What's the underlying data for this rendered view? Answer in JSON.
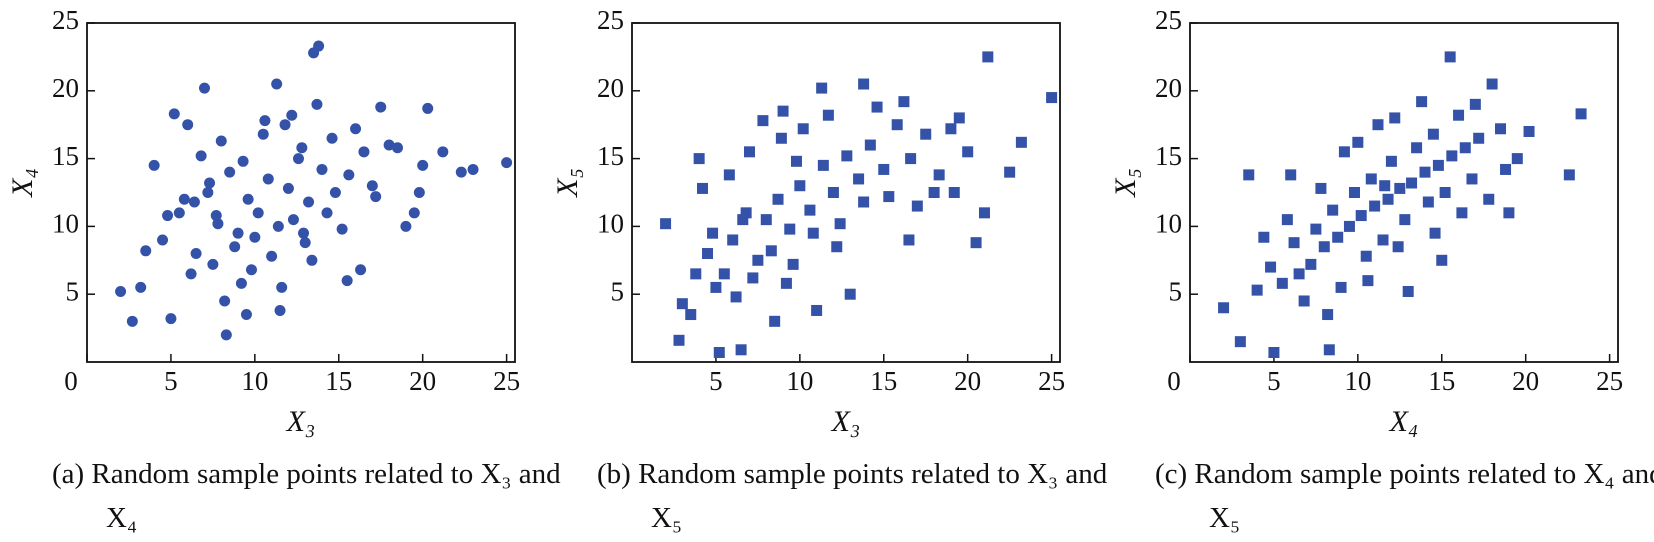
{
  "chart_data": [
    {
      "type": "scatter",
      "marker": "circle",
      "color": "#3452a8",
      "xlabel": "X₃",
      "ylabel": "X₄",
      "caption": "(a) Random sample points related to X₃ and X₄",
      "xlim": [
        0,
        25.5
      ],
      "ylim": [
        0,
        25
      ],
      "xticks": [
        0,
        5,
        10,
        15,
        20,
        25
      ],
      "yticks": [
        5,
        10,
        15,
        20,
        25
      ],
      "series": [
        {
          "x": [
            2,
            2.7,
            3.2,
            5,
            8.3,
            9.5,
            7,
            11.3,
            13.5,
            13.8,
            13.7,
            17.5,
            20.3,
            25,
            23,
            22.3,
            21.2,
            19,
            19.5,
            16.3,
            15.5,
            11.5,
            4,
            5.2,
            6,
            4.5,
            5.5,
            6.5,
            7.2,
            7.8,
            8.5,
            9,
            9.6,
            10.2,
            10.8,
            11.4,
            12,
            12.6,
            13.2,
            14,
            14.8,
            15.6,
            16.5,
            17.2,
            18,
            6.2,
            7.5,
            8.8,
            10,
            11,
            12.3,
            13,
            14.3,
            15.2,
            6.8,
            8,
            9.3,
            10.5,
            11.8,
            12.8,
            5.8,
            7.3,
            9.8,
            11.6,
            13.4,
            3.5,
            4.8,
            16,
            17,
            18.5,
            20,
            19.8,
            8.2,
            9.2,
            10.6,
            12.2,
            14.6,
            6.4,
            7.7,
            12.9
          ],
          "y": [
            5.2,
            3,
            5.5,
            3.2,
            2,
            3.5,
            20.2,
            20.5,
            22.8,
            23.3,
            19,
            18.8,
            18.7,
            14.7,
            14.2,
            14,
            15.5,
            10,
            11,
            6.8,
            6,
            3.8,
            14.5,
            18.3,
            17.5,
            9,
            11,
            8,
            12.5,
            10.2,
            14,
            9.5,
            12,
            11,
            13.5,
            10,
            12.8,
            15,
            11.8,
            14.2,
            12.5,
            13.8,
            15.5,
            12.2,
            16,
            6.5,
            7.2,
            8.5,
            9.2,
            7.8,
            10.5,
            8.8,
            11,
            9.8,
            15.2,
            16.3,
            14.8,
            16.8,
            17.5,
            15.8,
            12,
            13.2,
            6.8,
            5.5,
            7.5,
            8.2,
            10.8,
            17.2,
            13,
            15.8,
            14.5,
            12.5,
            4.5,
            5.8,
            17.8,
            18.2,
            16.5,
            11.8,
            10.8,
            9.5
          ]
        }
      ]
    },
    {
      "type": "scatter",
      "marker": "square",
      "color": "#3452a8",
      "xlabel": "X₃",
      "ylabel": "X₅",
      "caption": "(b) Random sample points related to X₃ and X₅",
      "xlim": [
        0,
        25.5
      ],
      "ylim": [
        0,
        25
      ],
      "xticks": [
        5,
        10,
        15,
        20,
        25
      ],
      "yticks": [
        5,
        10,
        15,
        20,
        25
      ],
      "series": [
        {
          "x": [
            2,
            2.8,
            5.2,
            6.5,
            21.2,
            25,
            23.2,
            22.5,
            20.5,
            21,
            13.8,
            11.3,
            9,
            4,
            19.5,
            11,
            13,
            8.5,
            3,
            3.5,
            4.5,
            5.5,
            6,
            6.8,
            7.5,
            8,
            8.7,
            9.4,
            10,
            10.6,
            11.4,
            12,
            12.8,
            13.5,
            14.2,
            15,
            15.8,
            16.6,
            17.5,
            18.3,
            19,
            20,
            5,
            6.2,
            7.2,
            8.3,
            9.6,
            10.8,
            12.4,
            13.8,
            15.3,
            4.2,
            5.8,
            7,
            8.9,
            10.2,
            11.7,
            14.6,
            16.2,
            17,
            18,
            6.6,
            9.8,
            12.2,
            7.8,
            3.8,
            4.8,
            16.5,
            19.2,
            9.2
          ],
          "y": [
            10.2,
            1.6,
            0.7,
            0.9,
            22.5,
            19.5,
            16.2,
            14,
            8.8,
            11,
            20.5,
            20.2,
            18.5,
            15,
            18,
            3.8,
            5,
            3,
            4.3,
            3.5,
            8,
            6.5,
            9,
            11,
            7.5,
            10.5,
            12,
            9.8,
            13,
            11.2,
            14.5,
            12.5,
            15.2,
            13.5,
            16,
            14.2,
            17.5,
            15,
            16.8,
            13.8,
            17.2,
            15.5,
            5.5,
            4.8,
            6.2,
            8.2,
            7.2,
            9.5,
            10.2,
            11.8,
            12.2,
            12.8,
            13.8,
            15.5,
            16.5,
            17.2,
            18.2,
            18.8,
            19.2,
            11.5,
            12.5,
            10.5,
            14.8,
            8.5,
            17.8,
            6.5,
            9.5,
            9,
            12.5,
            5.8
          ]
        }
      ]
    },
    {
      "type": "scatter",
      "marker": "square",
      "color": "#3452a8",
      "xlabel": "X₄",
      "ylabel": "X₅",
      "caption": "(c) Random sample points related to X₄ and X₅",
      "xlim": [
        0,
        25.5
      ],
      "ylim": [
        0,
        25
      ],
      "xticks": [
        0,
        5,
        10,
        15,
        20,
        25
      ],
      "yticks": [
        5,
        10,
        15,
        20,
        25
      ],
      "series": [
        {
          "x": [
            2,
            3,
            5,
            8.3,
            15.5,
            18,
            23.3,
            22.6,
            20.2,
            19,
            3.5,
            6,
            4,
            4.8,
            5.5,
            6.5,
            7.2,
            8,
            8.8,
            9.5,
            10.2,
            11,
            11.8,
            12.5,
            13.2,
            14,
            14.8,
            15.6,
            16.4,
            17.2,
            18.5,
            19.5,
            7.5,
            8.5,
            9.8,
            10.8,
            12,
            13.5,
            14.5,
            16,
            17,
            6.8,
            9,
            10.5,
            11.5,
            12.8,
            14.2,
            15.2,
            16.8,
            11.2,
            12.2,
            13.8,
            9.2,
            10,
            7.8,
            5.8,
            13,
            15,
            17.8,
            18.8,
            12.4,
            8.2,
            10.6,
            14.6,
            16.2,
            11.6,
            6.2,
            4.4
          ],
          "y": [
            4,
            1.5,
            0.7,
            0.9,
            22.5,
            20.5,
            18.3,
            13.8,
            17,
            11,
            13.8,
            13.8,
            5.3,
            7,
            5.8,
            6.5,
            7.2,
            8.5,
            9.2,
            10,
            10.8,
            11.5,
            12,
            12.8,
            13.2,
            14,
            14.5,
            15.2,
            15.8,
            16.5,
            17.2,
            15,
            9.8,
            11.2,
            12.5,
            13.5,
            14.8,
            15.8,
            16.8,
            18.2,
            19,
            4.5,
            5.5,
            7.8,
            9,
            10.5,
            11.8,
            12.5,
            13.5,
            17.5,
            18,
            19.2,
            15.5,
            16.2,
            12.8,
            10.5,
            5.2,
            7.5,
            12,
            14.2,
            8.5,
            3.5,
            6,
            9.5,
            11,
            13,
            8.8,
            9.2
          ]
        }
      ]
    }
  ]
}
